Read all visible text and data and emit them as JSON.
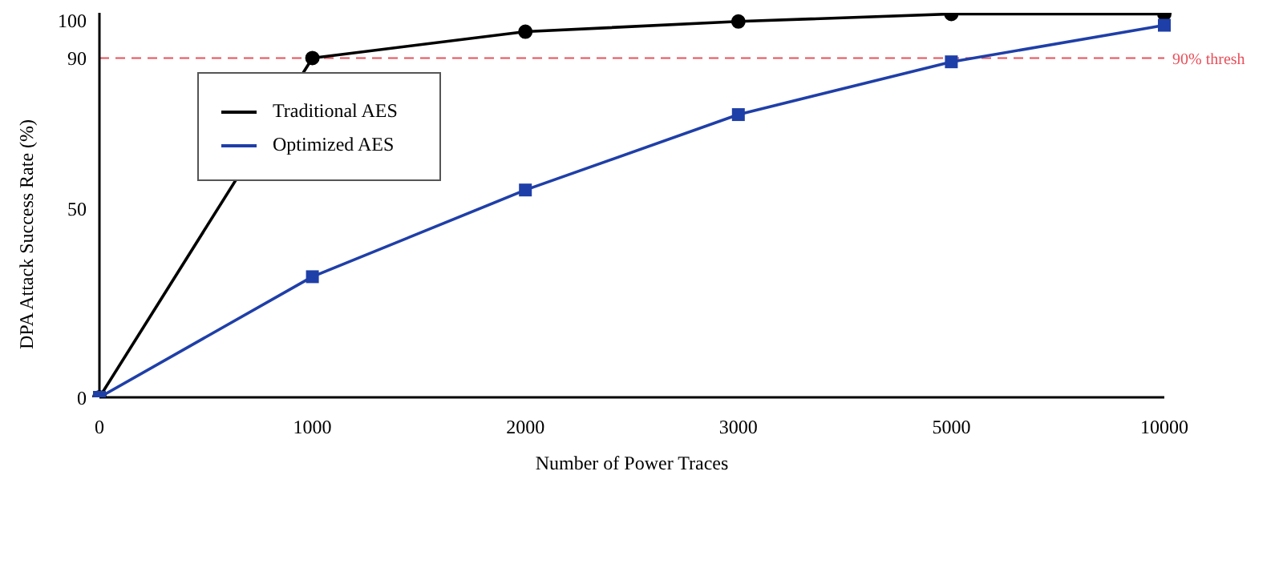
{
  "chart_data": {
    "type": "line",
    "xlabel": "Number of Power Traces",
    "ylabel": "DPA Attack Success Rate (%)",
    "categories": [
      "0",
      "1000",
      "2000",
      "3000",
      "5000",
      "10000"
    ],
    "series": [
      {
        "name": "Traditional AES",
        "color": "#000000",
        "marker": "circle",
        "values": [
          0,
          90,
          97,
          99.7,
          101.7,
          101.7
        ]
      },
      {
        "name": "Optimized AES",
        "color": "#1f3fa8",
        "marker": "square",
        "values": [
          0,
          32,
          55,
          75,
          89,
          98.7
        ]
      }
    ],
    "ylim": [
      0,
      102
    ],
    "yticks": [
      0,
      50,
      90,
      100
    ],
    "grid": false,
    "legend": "top left",
    "line_style": "solid",
    "ref_lines": [
      {
        "axis": "y",
        "value": 90,
        "label": "90% thresh",
        "color": "#e8505b",
        "line_style": "dashed"
      }
    ]
  }
}
